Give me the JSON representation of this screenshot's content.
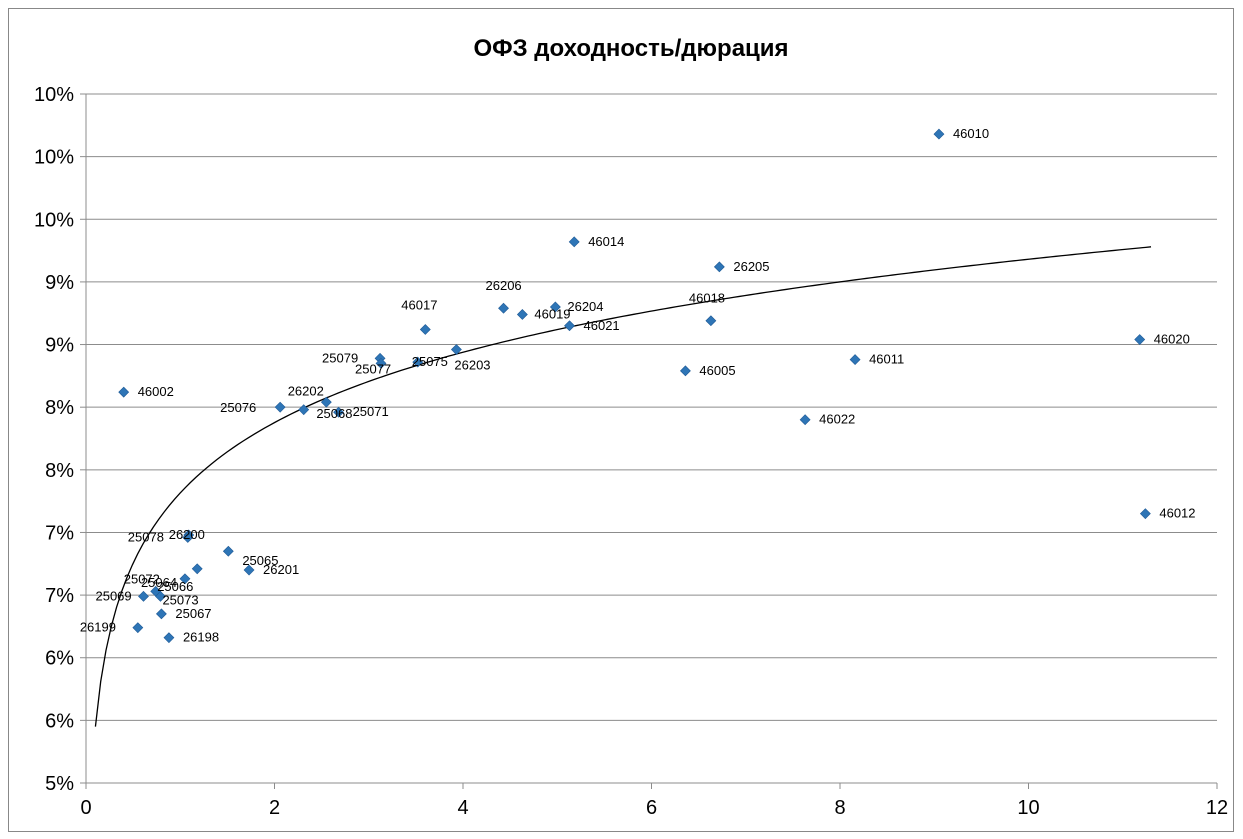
{
  "chart_data": {
    "type": "scatter",
    "title": "ОФЗ доходность/дюрация",
    "xlabel": "",
    "ylabel": "",
    "xlim": [
      0,
      12
    ],
    "ylim": [
      5.0,
      10.5
    ],
    "x_ticks": [
      0,
      2,
      4,
      6,
      8,
      10,
      12
    ],
    "x_tick_labels": [
      "0",
      "2",
      "4",
      "6",
      "8",
      "10",
      "12"
    ],
    "y_ticks": [
      5.0,
      5.5,
      6.0,
      6.5,
      7.0,
      7.5,
      8.0,
      8.5,
      9.0,
      9.5,
      10.0,
      10.5
    ],
    "y_tick_labels": [
      "5%",
      "6%",
      "6%",
      "7%",
      "7%",
      "8%",
      "8%",
      "9%",
      "9%",
      "10%",
      "10%",
      "10%"
    ],
    "grid": true,
    "legend": "none",
    "marker_color": "#2E75B6",
    "marker_edge_color": "#1F5A96",
    "trendline": {
      "type": "logarithmic",
      "color": "#000000",
      "x_range": [
        0.1,
        11.3
      ],
      "points": [
        [
          0.1,
          5.45
        ],
        [
          11.3,
          9.28
        ]
      ]
    },
    "points": [
      {
        "label": "46002",
        "x": 0.4,
        "y": 8.12
      },
      {
        "label": "46010",
        "x": 9.05,
        "y": 10.18
      },
      {
        "label": "46014",
        "x": 5.18,
        "y": 9.32
      },
      {
        "label": "26205",
        "x": 6.72,
        "y": 9.12
      },
      {
        "label": "26206",
        "x": 4.43,
        "y": 8.79
      },
      {
        "label": "26204",
        "x": 4.98,
        "y": 8.8
      },
      {
        "label": "46019",
        "x": 4.63,
        "y": 8.74
      },
      {
        "label": "46021",
        "x": 5.13,
        "y": 8.65
      },
      {
        "label": "46018",
        "x": 6.63,
        "y": 8.69
      },
      {
        "label": "46017",
        "x": 3.6,
        "y": 8.62
      },
      {
        "label": "46020",
        "x": 11.18,
        "y": 8.54
      },
      {
        "label": "25079",
        "x": 3.12,
        "y": 8.39
      },
      {
        "label": "25077",
        "x": 3.13,
        "y": 8.35
      },
      {
        "label": "25075",
        "x": 3.52,
        "y": 8.36
      },
      {
        "label": "26203",
        "x": 3.93,
        "y": 8.46
      },
      {
        "label": "46011",
        "x": 8.16,
        "y": 8.38
      },
      {
        "label": "46005",
        "x": 6.36,
        "y": 8.29
      },
      {
        "label": "26202",
        "x": 2.31,
        "y": 7.98
      },
      {
        "label": "25076",
        "x": 2.06,
        "y": 8.0
      },
      {
        "label": "25068",
        "x": 2.55,
        "y": 8.04
      },
      {
        "label": "25071",
        "x": 2.68,
        "y": 7.96
      },
      {
        "label": "46022",
        "x": 7.63,
        "y": 7.9
      },
      {
        "label": "46012",
        "x": 11.24,
        "y": 7.15
      },
      {
        "label": "26200",
        "x": 1.09,
        "y": 6.98
      },
      {
        "label": "25078",
        "x": 1.08,
        "y": 6.96
      },
      {
        "label": "25065",
        "x": 1.51,
        "y": 6.85
      },
      {
        "label": "26201",
        "x": 1.73,
        "y": 6.7
      },
      {
        "label": "25066",
        "x": 1.18,
        "y": 6.71
      },
      {
        "label": "25064",
        "x": 1.05,
        "y": 6.63
      },
      {
        "label": "25072",
        "x": 0.74,
        "y": 6.53
      },
      {
        "label": "25069",
        "x": 0.61,
        "y": 6.49
      },
      {
        "label": "25073",
        "x": 0.79,
        "y": 6.49
      },
      {
        "label": "25067",
        "x": 0.8,
        "y": 6.35
      },
      {
        "label": "26199",
        "x": 0.55,
        "y": 6.24
      },
      {
        "label": "26198",
        "x": 0.88,
        "y": 6.16
      }
    ]
  }
}
